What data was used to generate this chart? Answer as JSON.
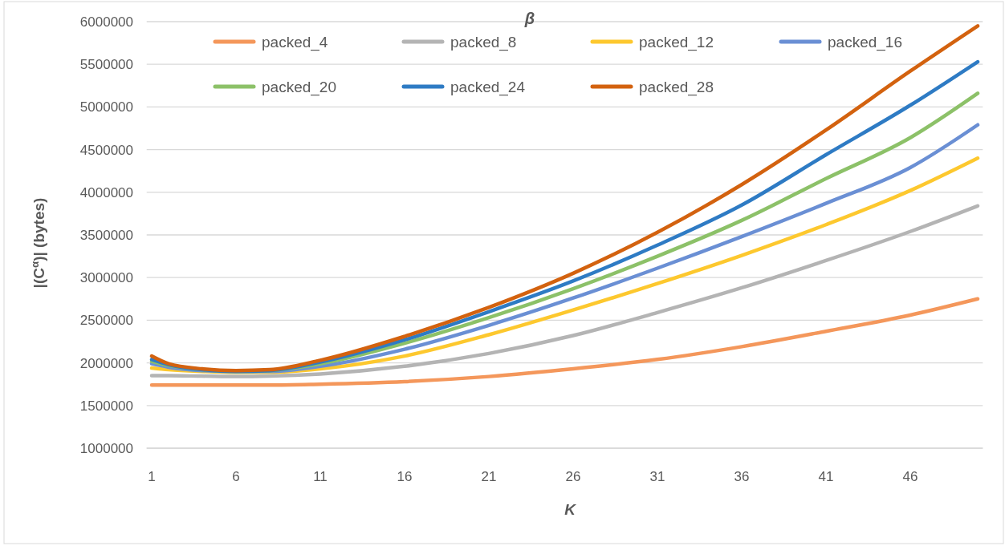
{
  "chart_data": {
    "type": "line",
    "title": "β",
    "xlabel": "K",
    "ylabel": "|(C$^{α}$)| (bytes)",
    "x": [
      1,
      2,
      4,
      6,
      8,
      11,
      16,
      21,
      26,
      31,
      36,
      41,
      46,
      50
    ],
    "xlim": [
      0.7,
      50.3
    ],
    "xticks": [
      1,
      6,
      11,
      16,
      21,
      26,
      31,
      36,
      41,
      46
    ],
    "ylim": [
      1000000,
      6000000
    ],
    "yticks": [
      1000000,
      1500000,
      2000000,
      2500000,
      3000000,
      3500000,
      4000000,
      4500000,
      5000000,
      5500000,
      6000000
    ],
    "grid": "y",
    "legend": "top",
    "marker": "none",
    "line_style": "solid",
    "series": [
      {
        "name": "packed_4",
        "color": "#f4975b",
        "values": [
          1740000,
          1740000,
          1740000,
          1740000,
          1740000,
          1750000,
          1780000,
          1840000,
          1930000,
          2040000,
          2190000,
          2370000,
          2560000,
          2750000
        ]
      },
      {
        "name": "packed_8",
        "color": "#b4b4b4",
        "values": [
          1850000,
          1850000,
          1845000,
          1840000,
          1845000,
          1870000,
          1960000,
          2110000,
          2320000,
          2590000,
          2880000,
          3200000,
          3540000,
          3840000
        ]
      },
      {
        "name": "packed_12",
        "color": "#fdc82e",
        "values": [
          1940000,
          1920000,
          1900000,
          1890000,
          1890000,
          1930000,
          2080000,
          2330000,
          2620000,
          2930000,
          3260000,
          3620000,
          4020000,
          4400000
        ]
      },
      {
        "name": "packed_16",
        "color": "#6a8fd4",
        "values": [
          1990000,
          1950000,
          1910000,
          1900000,
          1900000,
          1960000,
          2160000,
          2440000,
          2760000,
          3110000,
          3480000,
          3870000,
          4290000,
          4790000
        ]
      },
      {
        "name": "packed_20",
        "color": "#8cc168",
        "values": [
          2020000,
          1970000,
          1920000,
          1900000,
          1910000,
          1990000,
          2230000,
          2530000,
          2870000,
          3250000,
          3670000,
          4160000,
          4640000,
          5160000
        ]
      },
      {
        "name": "packed_24",
        "color": "#2e7bc4",
        "values": [
          2040000,
          1980000,
          1920000,
          1900000,
          1910000,
          2010000,
          2270000,
          2600000,
          2960000,
          3380000,
          3850000,
          4440000,
          5020000,
          5530000
        ]
      },
      {
        "name": "packed_28",
        "color": "#d3620f",
        "values": [
          2080000,
          1990000,
          1930000,
          1910000,
          1920000,
          2030000,
          2310000,
          2650000,
          3050000,
          3530000,
          4090000,
          4730000,
          5420000,
          5950000
        ]
      }
    ]
  }
}
